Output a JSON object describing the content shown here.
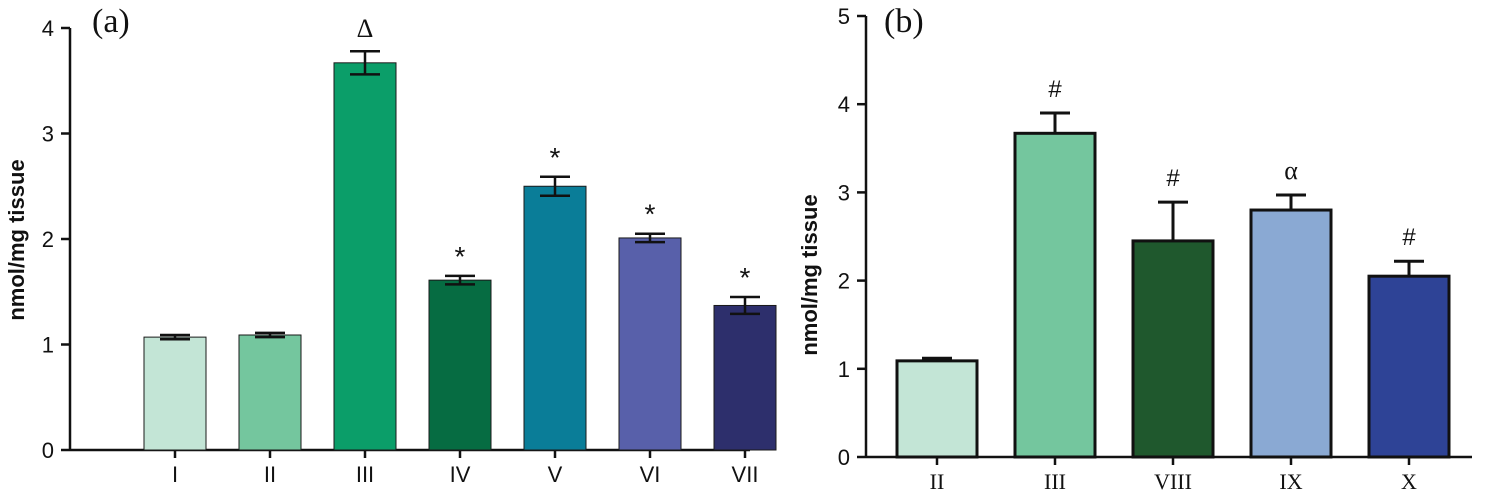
{
  "chart_data": [
    {
      "panel_label": "(a)",
      "type": "bar",
      "ylabel": "nmol/mg tissue",
      "ylim": [
        0,
        4
      ],
      "yticks": [
        "0",
        "1",
        "2",
        "3",
        "4"
      ],
      "categories": [
        "I",
        "II",
        "III",
        "IV",
        "V",
        "VI",
        "VII"
      ],
      "values": [
        1.07,
        1.09,
        3.67,
        1.61,
        2.5,
        2.01,
        1.37
      ],
      "errors": [
        0.02,
        0.02,
        0.11,
        0.04,
        0.09,
        0.04,
        0.08
      ],
      "annotations": [
        "",
        "",
        "Δ",
        "*",
        "*",
        "*",
        "*"
      ],
      "colors": [
        "#c3e5d6",
        "#74c69e",
        "#0b9e69",
        "#066c42",
        "#0a7d98",
        "#5860aa",
        "#2d2f6c"
      ],
      "error_style": "both"
    },
    {
      "panel_label": "(b)",
      "type": "bar",
      "ylabel": "nmol/mg tissue",
      "ylim": [
        0,
        5
      ],
      "yticks": [
        "0",
        "1",
        "2",
        "3",
        "4",
        "5"
      ],
      "categories": [
        "II",
        "III",
        "VIII",
        "IX",
        "X"
      ],
      "values": [
        1.09,
        3.67,
        2.45,
        2.8,
        2.05
      ],
      "errors": [
        0.03,
        0.23,
        0.44,
        0.17,
        0.17
      ],
      "annotations": [
        "",
        "#",
        "#",
        "α",
        "#"
      ],
      "colors": [
        "#c3e5d6",
        "#74c69e",
        "#1f582d",
        "#8aa9d3",
        "#2e4396"
      ],
      "error_style": "up"
    }
  ]
}
